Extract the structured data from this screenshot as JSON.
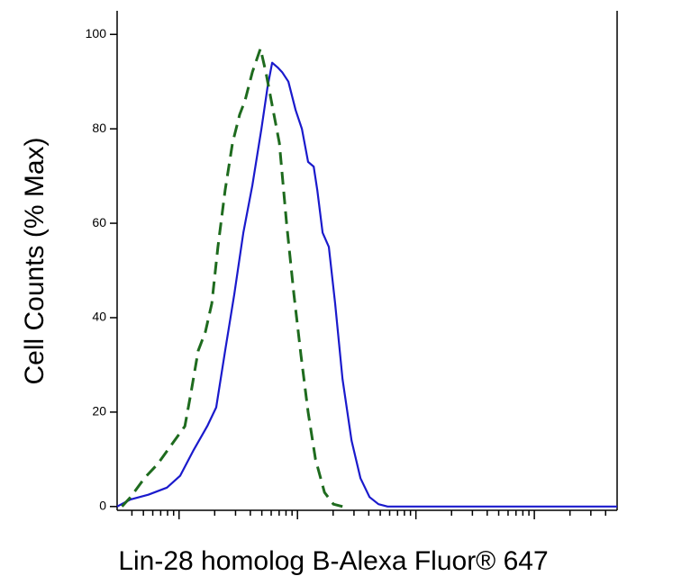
{
  "chart_data": {
    "type": "line",
    "x_label": "Lin-28 homolog B-Alexa Fluor® 647",
    "y_label": "Cell Counts (% Max)",
    "xscale": "log",
    "xlim": [
      3,
      50000
    ],
    "xticks": [
      4,
      5,
      6,
      7,
      8,
      9,
      10,
      20,
      30,
      40,
      50,
      60,
      70,
      80,
      90,
      100,
      200,
      300,
      400,
      500,
      600,
      700,
      800,
      900,
      1000,
      2000,
      3000,
      4000,
      5000,
      6000,
      7000,
      8000,
      9000,
      10000,
      20000,
      30000,
      40000
    ],
    "ylim": [
      -0.8,
      105
    ],
    "yticks": [
      0,
      20,
      40,
      60,
      80,
      100
    ],
    "series": [
      {
        "color": "#1a1acc",
        "dash": false,
        "x": [
          3,
          3.9,
          5.5,
          7.9,
          10.2,
          13.3,
          17.3,
          20.6,
          24.5,
          29.3,
          34.9,
          41.6,
          49.6,
          56.0,
          61.1,
          68.0,
          74.2,
          83.8,
          96.4,
          109,
          123,
          137,
          147,
          163,
          184,
          208,
          240,
          286,
          340,
          406,
          483,
          576,
          50000
        ],
        "values": [
          0,
          1.5,
          2.5,
          4,
          6.5,
          12,
          17,
          21,
          33,
          45,
          58,
          68,
          80,
          89,
          94,
          93,
          92,
          90,
          84,
          80,
          73,
          72,
          67,
          58,
          55,
          43,
          27,
          14,
          6,
          2,
          0.5,
          0,
          0
        ]
      },
      {
        "color": "#1e6b1e",
        "dash": true,
        "x": [
          3.3,
          3.9,
          5.1,
          6.6,
          8.6,
          11.2,
          12.6,
          14.5,
          16.7,
          18.9,
          21.3,
          24.5,
          28.3,
          32.5,
          36.1,
          41.6,
          48.7,
          54.1,
          61.1,
          70.3,
          80.9,
          93.2,
          107,
          123,
          142,
          169,
          201,
          240
        ],
        "values": [
          0,
          2,
          6,
          9,
          13,
          17,
          24,
          33,
          37,
          43,
          55,
          67,
          77,
          83,
          86,
          92,
          97,
          92,
          85,
          77,
          60,
          45,
          32,
          20,
          10,
          3,
          0.5,
          0
        ]
      }
    ]
  }
}
